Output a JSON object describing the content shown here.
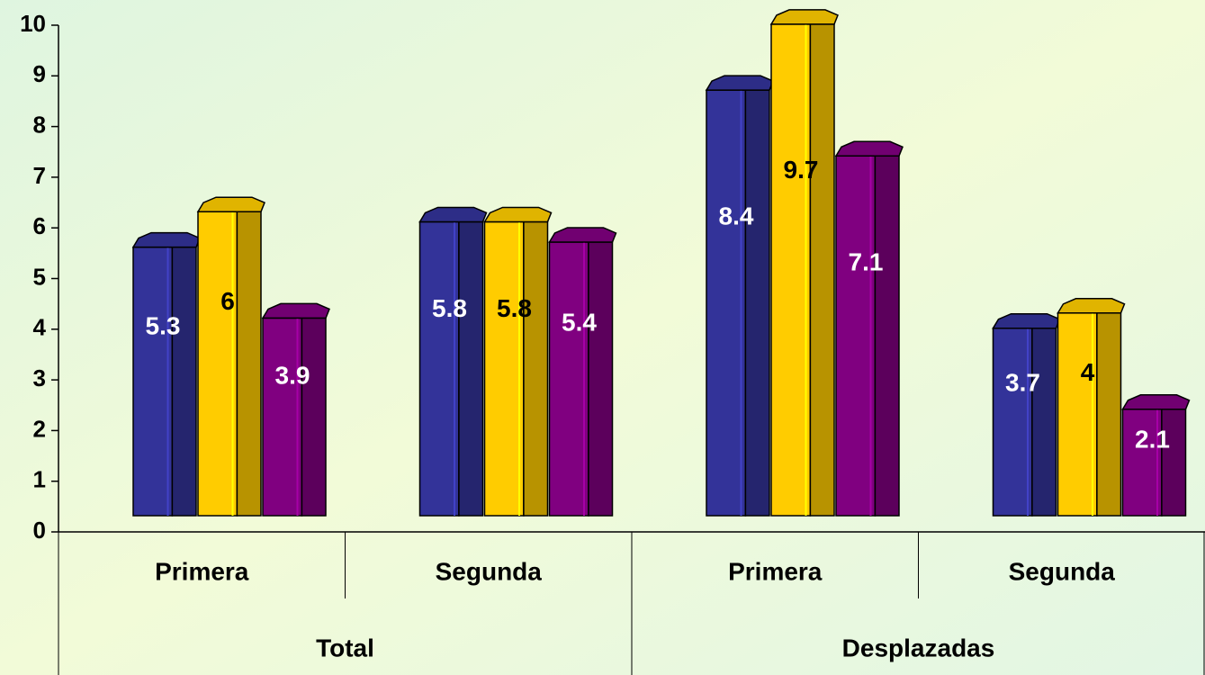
{
  "chart_data": {
    "type": "bar3d",
    "categories": [
      "Primera",
      "Segunda",
      "Primera",
      "Segunda"
    ],
    "groups": [
      "Total",
      "Desplazadas"
    ],
    "series": [
      {
        "color": "#333399",
        "values": [
          5.3,
          5.8,
          8.4,
          3.7
        ]
      },
      {
        "color": "#FFCC00",
        "values": [
          6,
          5.8,
          9.7,
          4
        ]
      },
      {
        "color": "#800080",
        "values": [
          3.9,
          5.4,
          7.1,
          2.1
        ]
      }
    ],
    "ylim": [
      0,
      10
    ],
    "yticks": [
      0,
      1,
      2,
      3,
      4,
      5,
      6,
      7,
      8,
      9,
      10
    ]
  }
}
